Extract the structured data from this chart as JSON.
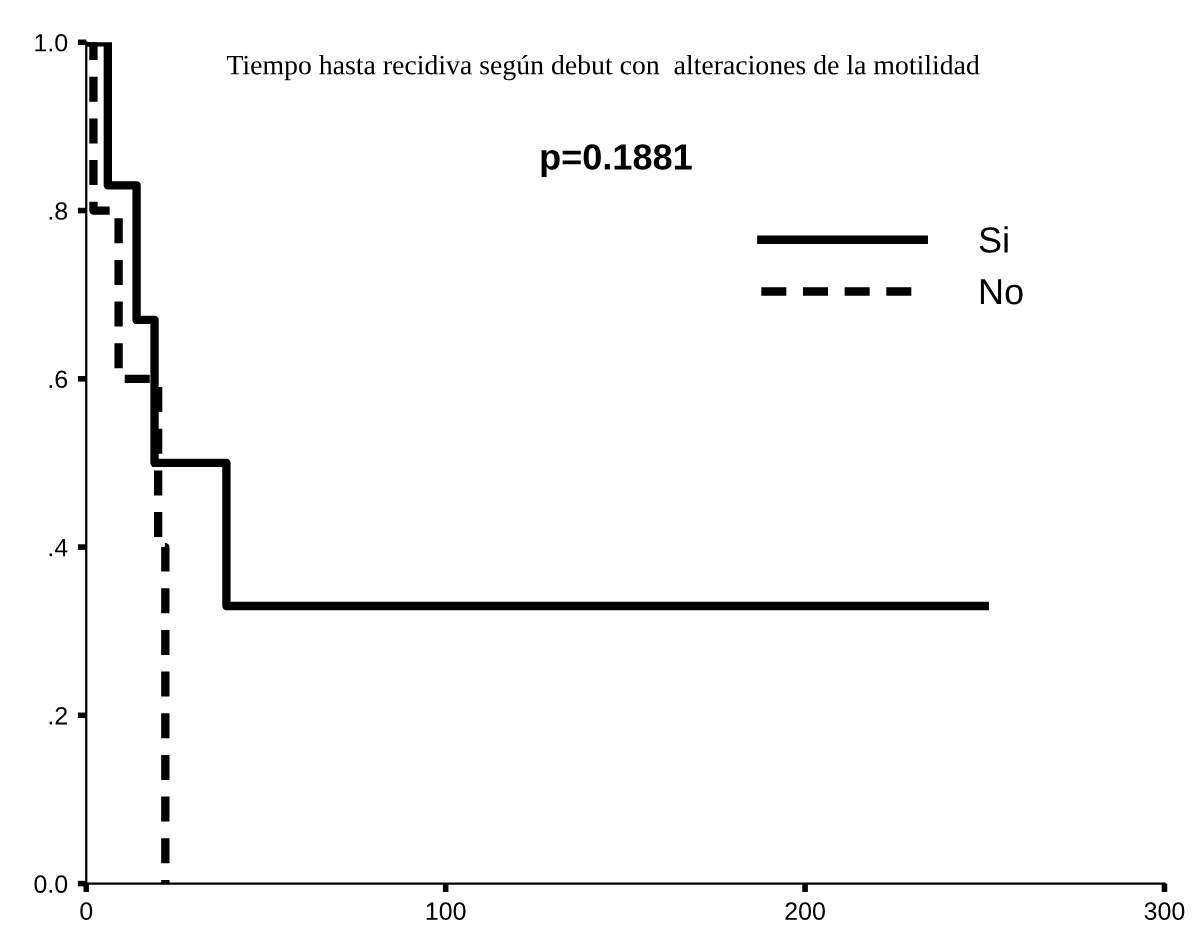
{
  "chart_data": {
    "type": "step",
    "title": "Tiempo hasta recidiva según debut con  alteraciones de la motilidad",
    "series": [
      {
        "name": "Si",
        "color": "#000000",
        "line_style": "solid",
        "x": [
          0,
          6,
          14,
          19,
          39,
          250
        ],
        "values": [
          1.0,
          0.83,
          0.67,
          0.5,
          0.33,
          0.33
        ]
      },
      {
        "name": "No",
        "color": "#000000",
        "line_style": "dashed",
        "x": [
          0,
          2,
          9,
          20,
          22
        ],
        "values": [
          1.0,
          0.8,
          0.6,
          0.4,
          0.0
        ]
      }
    ],
    "annotations": [
      "p=0.1881"
    ],
    "xlim": [
      0,
      300
    ],
    "xticks": [
      0,
      100,
      200,
      300
    ],
    "ylim": [
      0,
      1
    ],
    "yticks": [
      {
        "value": 0,
        "label": "0.0"
      },
      {
        "value": 0.2,
        "label": ".2"
      },
      {
        "value": 0.4,
        "label": ".4"
      },
      {
        "value": 0.6,
        "label": ".6"
      },
      {
        "value": 0.8,
        "label": ".8"
      },
      {
        "value": 1.0,
        "label": "1.0"
      }
    ],
    "grid": false,
    "legend": "top right",
    "marker": "none"
  }
}
